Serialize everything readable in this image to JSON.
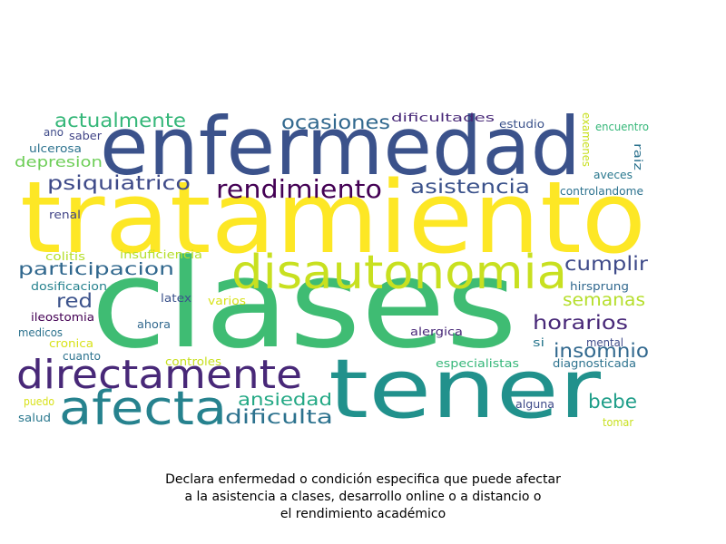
{
  "caption": {
    "line1": "Declara enfermedad o condición especifica que puede afectar",
    "line2": "a la asistencia a clases, desarrollo online o a distancio o",
    "line3": "el rendimiento académico"
  },
  "words": [
    {
      "text": "tratamiento",
      "color": "#fde725"
    },
    {
      "text": "clases",
      "color": "#3fbc73"
    },
    {
      "text": "enfermedad",
      "color": "#3b528b"
    },
    {
      "text": "tener",
      "color": "#21918c"
    },
    {
      "text": "disautonomia",
      "color": "#c8e020"
    },
    {
      "text": "directamente",
      "color": "#482878"
    },
    {
      "text": "afecta",
      "color": "#26828e"
    },
    {
      "text": "rendimiento",
      "color": "#440154"
    },
    {
      "text": "actualmente",
      "color": "#35b779"
    },
    {
      "text": "ocasiones",
      "color": "#31688e"
    },
    {
      "text": "psiquiatrico",
      "color": "#3e4a89"
    },
    {
      "text": "asistencia",
      "color": "#3b528b"
    },
    {
      "text": "participacion",
      "color": "#31688e"
    },
    {
      "text": "cumplir",
      "color": "#3e4a89"
    },
    {
      "text": "semanas",
      "color": "#b5de2b"
    },
    {
      "text": "red",
      "color": "#3b528b"
    },
    {
      "text": "horarios",
      "color": "#482878"
    },
    {
      "text": "insomnio",
      "color": "#31688e"
    },
    {
      "text": "ansiedad",
      "color": "#22a884"
    },
    {
      "text": "dificulta",
      "color": "#2c728e"
    },
    {
      "text": "bebe",
      "color": "#1f9e89"
    },
    {
      "text": "depresion",
      "color": "#6ece58"
    },
    {
      "text": "dificultades",
      "color": "#482878"
    },
    {
      "text": "estudio",
      "color": "#3b528b"
    },
    {
      "text": "encuentro",
      "color": "#35b779"
    },
    {
      "text": "ulcerosa",
      "color": "#2c728e"
    },
    {
      "text": "ano",
      "color": "#3e4a89"
    },
    {
      "text": "saber",
      "color": "#414487"
    },
    {
      "text": "aveces",
      "color": "#2a788e"
    },
    {
      "text": "controlandome",
      "color": "#2c728e"
    },
    {
      "text": "renal",
      "color": "#414487"
    },
    {
      "text": "colitis",
      "color": "#b5de2b"
    },
    {
      "text": "insuficiencia",
      "color": "#b5de2b"
    },
    {
      "text": "dosificacion",
      "color": "#26828e"
    },
    {
      "text": "latex",
      "color": "#3b528b"
    },
    {
      "text": "varios",
      "color": "#d8e219"
    },
    {
      "text": "ileostomia",
      "color": "#440154"
    },
    {
      "text": "ahora",
      "color": "#31688e"
    },
    {
      "text": "medicos",
      "color": "#2c728e"
    },
    {
      "text": "cronica",
      "color": "#d8e219"
    },
    {
      "text": "cuanto",
      "color": "#2c728e"
    },
    {
      "text": "controles",
      "color": "#c8e020"
    },
    {
      "text": "alergica",
      "color": "#482878"
    },
    {
      "text": "especialistas",
      "color": "#35b779"
    },
    {
      "text": "si",
      "color": "#2a788e"
    },
    {
      "text": "mental",
      "color": "#3e4a89"
    },
    {
      "text": "diagnosticada",
      "color": "#2c728e"
    },
    {
      "text": "hirsprung",
      "color": "#31688e"
    },
    {
      "text": "puedo",
      "color": "#d8e219"
    },
    {
      "text": "salud",
      "color": "#2a788e"
    },
    {
      "text": "alguna",
      "color": "#3e4a89"
    },
    {
      "text": "tomar",
      "color": "#c8e020"
    },
    {
      "text": "examenes",
      "color": "#c8e020"
    },
    {
      "text": "raiz",
      "color": "#2c728e"
    }
  ]
}
